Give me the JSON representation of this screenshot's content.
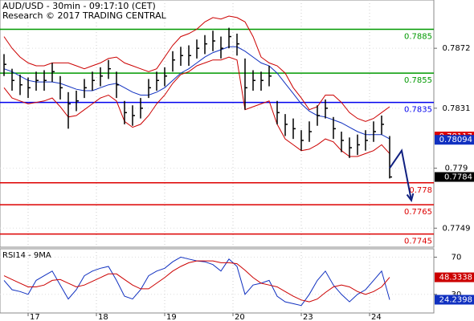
{
  "chart_data": {
    "type": "ohlc",
    "title": "AUD/USD - 30min - 09:17:10 (CET)",
    "subtitle": "Research © 2017 TRADING CENTRAL",
    "x": [
      0,
      1,
      2,
      3,
      4,
      5,
      6,
      7,
      8,
      9,
      10,
      11,
      12,
      13,
      14,
      15,
      16,
      17,
      18,
      19,
      20,
      21,
      22,
      23,
      24,
      25,
      26,
      27,
      28,
      29,
      30,
      31,
      32,
      33,
      34,
      35,
      36,
      37,
      38,
      39,
      40,
      41,
      42,
      43,
      44,
      45,
      46,
      47,
      48
    ],
    "xlim": [
      -0.5,
      53.5
    ],
    "xticks": [
      {
        "value": 3,
        "label": "17"
      },
      {
        "value": 11.5,
        "label": "18"
      },
      {
        "value": 20,
        "label": "19"
      },
      {
        "value": 28.5,
        "label": "20"
      },
      {
        "value": 37,
        "label": "23"
      },
      {
        "value": 45.5,
        "label": "24"
      }
    ],
    "ylim": [
      0.7736,
      0.7905
    ],
    "yticks": [
      0.7749,
      0.779,
      0.7831,
      0.7872
    ],
    "grid": true,
    "bar_color": "#000000",
    "high": [
      0.7868,
      0.7858,
      0.7854,
      0.7852,
      0.7856,
      0.7857,
      0.7862,
      0.7853,
      0.7842,
      0.7843,
      0.7851,
      0.7856,
      0.7859,
      0.7864,
      0.7856,
      0.7836,
      0.7833,
      0.7838,
      0.7851,
      0.7856,
      0.7859,
      0.787,
      0.7873,
      0.7874,
      0.7878,
      0.7881,
      0.7884,
      0.788,
      0.7886,
      0.7882,
      0.7865,
      0.7857,
      0.7856,
      0.786,
      0.7836,
      0.7827,
      0.7824,
      0.7816,
      0.7822,
      0.7833,
      0.7837,
      0.7825,
      0.7815,
      0.7811,
      0.7813,
      0.7816,
      0.7822,
      0.7826,
      0.7812
    ],
    "low": [
      0.7853,
      0.7843,
      0.784,
      0.7838,
      0.7843,
      0.7843,
      0.7849,
      0.7837,
      0.7817,
      0.7829,
      0.7838,
      0.7843,
      0.7846,
      0.7851,
      0.7838,
      0.782,
      0.7819,
      0.7824,
      0.7838,
      0.7843,
      0.7846,
      0.7856,
      0.786,
      0.786,
      0.7865,
      0.7868,
      0.787,
      0.7865,
      0.7872,
      0.7867,
      0.783,
      0.7843,
      0.7843,
      0.7846,
      0.782,
      0.7812,
      0.781,
      0.7802,
      0.7808,
      0.7819,
      0.7824,
      0.781,
      0.7801,
      0.7797,
      0.7799,
      0.7802,
      0.7808,
      0.7813,
      0.7783
    ],
    "close": [
      0.7861,
      0.785,
      0.7847,
      0.7845,
      0.785,
      0.785,
      0.7856,
      0.7845,
      0.7834,
      0.7836,
      0.7845,
      0.785,
      0.7853,
      0.7858,
      0.7847,
      0.7828,
      0.7826,
      0.7831,
      0.7845,
      0.785,
      0.7853,
      0.7864,
      0.7867,
      0.7867,
      0.7872,
      0.7875,
      0.7877,
      0.7872,
      0.788,
      0.7875,
      0.7845,
      0.785,
      0.785,
      0.7853,
      0.7828,
      0.782,
      0.7817,
      0.7809,
      0.7815,
      0.7826,
      0.7831,
      0.7817,
      0.7809,
      0.7804,
      0.7806,
      0.7809,
      0.7815,
      0.782,
      0.7784
    ],
    "lines": [
      {
        "color": "#cc0000",
        "values": [
          0.788,
          0.7872,
          0.7866,
          0.7862,
          0.786,
          0.786,
          0.7862,
          0.7862,
          0.7862,
          0.786,
          0.7858,
          0.786,
          0.7862,
          0.7865,
          0.7866,
          0.7862,
          0.786,
          0.7858,
          0.7856,
          0.7858,
          0.7866,
          0.7874,
          0.788,
          0.7882,
          0.7885,
          0.789,
          0.7893,
          0.7892,
          0.7894,
          0.7893,
          0.789,
          0.788,
          0.7866,
          0.7862,
          0.786,
          0.7855,
          0.7845,
          0.7838,
          0.783,
          0.7832,
          0.784,
          0.784,
          0.7835,
          0.7828,
          0.7824,
          0.7822,
          0.7824,
          0.7828,
          0.7832
        ]
      },
      {
        "color": "#cc0000",
        "values": [
          0.7845,
          0.7838,
          0.7836,
          0.7834,
          0.7835,
          0.7836,
          0.7838,
          0.7832,
          0.7825,
          0.7826,
          0.783,
          0.7834,
          0.7838,
          0.784,
          0.7836,
          0.7822,
          0.7818,
          0.782,
          0.7826,
          0.7834,
          0.784,
          0.7848,
          0.7854,
          0.7856,
          0.786,
          0.7862,
          0.7864,
          0.7864,
          0.7866,
          0.7864,
          0.783,
          0.7832,
          0.7834,
          0.7836,
          0.782,
          0.781,
          0.7806,
          0.7802,
          0.7803,
          0.7806,
          0.781,
          0.7808,
          0.7802,
          0.7798,
          0.7798,
          0.78,
          0.7802,
          0.7806,
          0.78
        ]
      },
      {
        "color": "#1030c0",
        "values": [
          0.7858,
          0.7856,
          0.7853,
          0.785,
          0.7849,
          0.7849,
          0.7849,
          0.7848,
          0.7846,
          0.7844,
          0.7843,
          0.7843,
          0.7845,
          0.7847,
          0.7848,
          0.7845,
          0.7842,
          0.784,
          0.784,
          0.7842,
          0.7845,
          0.785,
          0.7855,
          0.7858,
          0.7862,
          0.7866,
          0.7869,
          0.7871,
          0.7873,
          0.7873,
          0.787,
          0.7866,
          0.7862,
          0.786,
          0.7855,
          0.7848,
          0.7841,
          0.7834,
          0.7829,
          0.7826,
          0.7825,
          0.7823,
          0.7821,
          0.7818,
          0.7815,
          0.7813,
          0.7813,
          0.7813,
          0.781
        ]
      }
    ],
    "levels": [
      {
        "value": 0.7885,
        "color": "#009900"
      },
      {
        "value": 0.7855,
        "color": "#009900"
      },
      {
        "value": 0.7835,
        "color": "#0000ee"
      },
      {
        "value": 0.778,
        "color": "#dd0000"
      },
      {
        "value": 0.7765,
        "color": "#dd0000"
      },
      {
        "value": 0.7745,
        "color": "#dd0000"
      }
    ],
    "markers": [
      {
        "value": 0.78117,
        "color": "#dd0000"
      },
      {
        "value": 0.78094,
        "color": "#1030c0"
      },
      {
        "value": 0.7784,
        "color": "#000000"
      }
    ],
    "projection": {
      "color": "#102080",
      "x": [
        48,
        49.5,
        50.7
      ],
      "y": [
        0.779,
        0.7802,
        0.7768
      ]
    },
    "rsi": {
      "label": "RSI14 - 9MA",
      "ylim": [
        10,
        79
      ],
      "yticks": [
        30,
        70
      ],
      "lines": [
        {
          "color": "#1030c0",
          "values": [
            45,
            35,
            33,
            30,
            45,
            50,
            55,
            40,
            25,
            35,
            50,
            55,
            58,
            60,
            45,
            28,
            25,
            35,
            50,
            55,
            58,
            65,
            70,
            68,
            66,
            65,
            62,
            55,
            68,
            60,
            30,
            40,
            42,
            45,
            28,
            22,
            20,
            18,
            30,
            45,
            55,
            40,
            30,
            22,
            30,
            35,
            45,
            55,
            24.2398
          ]
        },
        {
          "color": "#cc0000",
          "values": [
            50,
            46,
            42,
            38,
            38,
            40,
            45,
            46,
            42,
            38,
            40,
            44,
            48,
            52,
            52,
            46,
            40,
            36,
            36,
            42,
            48,
            55,
            60,
            64,
            66,
            66,
            66,
            64,
            64,
            63,
            56,
            48,
            42,
            40,
            38,
            33,
            28,
            24,
            22,
            25,
            32,
            38,
            40,
            38,
            33,
            30,
            33,
            38,
            48.3338
          ]
        }
      ]
    }
  }
}
